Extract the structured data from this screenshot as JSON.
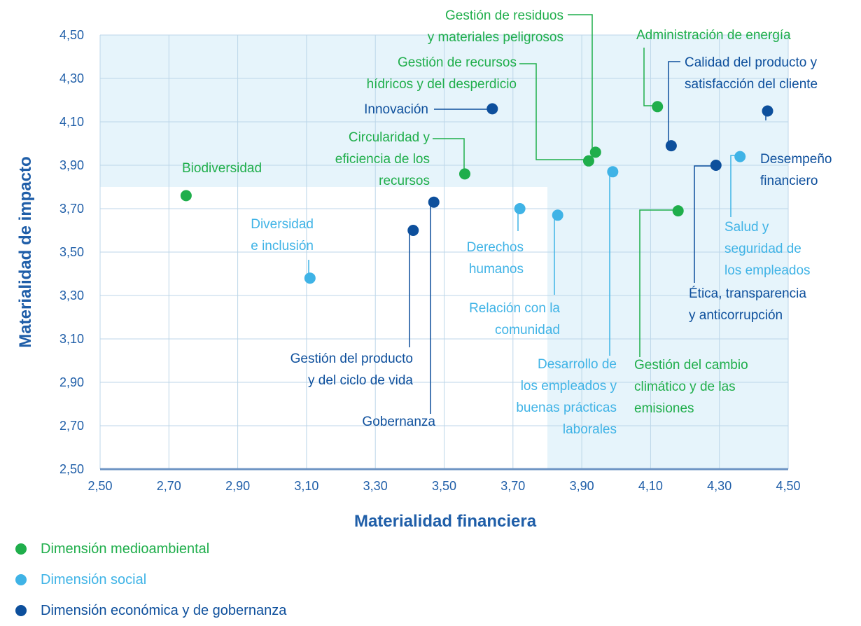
{
  "colors": {
    "environmental": "#1fae4b",
    "social": "#3fb3e6",
    "governance": "#0d4f9c",
    "axis_text": "#1f5ea8",
    "band": "#e6f4fb",
    "grid": "#bcd6e8",
    "baseline": "#6f95c4"
  },
  "chart_data": {
    "type": "scatter",
    "xlabel": "Materialidad financiera",
    "ylabel": "Materialidad de impacto",
    "xlim": [
      2.5,
      4.5
    ],
    "ylim": [
      2.5,
      4.5
    ],
    "x_ticks": [
      "2,50",
      "2,70",
      "2,90",
      "3,10",
      "3,30",
      "3,50",
      "3,70",
      "3,90",
      "4,10",
      "4,30",
      "4,50"
    ],
    "y_ticks": [
      "2,50",
      "2,70",
      "2,90",
      "3,10",
      "3,30",
      "3,50",
      "3,70",
      "3,90",
      "4,10",
      "4,30",
      "4,50"
    ],
    "grid": true,
    "highlight_threshold": 3.8,
    "legend_position": "bottom-left",
    "series": [
      {
        "name": "Dimensión medioambiental",
        "key": "environmental",
        "points": [
          {
            "x": 2.75,
            "y": 3.76,
            "label": [
              "Biodiversidad"
            ]
          },
          {
            "x": 3.56,
            "y": 3.86,
            "label": [
              "Circularidad y",
              "eficiencia de los",
              "recursos"
            ]
          },
          {
            "x": 3.92,
            "y": 3.92,
            "label": [
              "Gestión de recursos",
              "hídricos y del desperdicio"
            ]
          },
          {
            "x": 3.94,
            "y": 3.96,
            "label": [
              "Gestión de residuos",
              "y materiales peligrosos"
            ]
          },
          {
            "x": 4.12,
            "y": 4.17,
            "label": [
              "Administración de energía"
            ]
          },
          {
            "x": 4.18,
            "y": 3.69,
            "label": [
              "Gestión del cambio",
              "climático y de las",
              "emisiones"
            ]
          }
        ]
      },
      {
        "name": "Dimensión social",
        "key": "social",
        "points": [
          {
            "x": 3.11,
            "y": 3.38,
            "label": [
              "Diversidad",
              "e inclusión"
            ]
          },
          {
            "x": 3.72,
            "y": 3.7,
            "label": [
              "Derechos",
              "humanos"
            ]
          },
          {
            "x": 3.83,
            "y": 3.67,
            "label": [
              "Relación con la",
              "comunidad"
            ]
          },
          {
            "x": 3.99,
            "y": 3.87,
            "label": [
              "Desarrollo de",
              "los empleados y",
              "buenas prácticas",
              "laborales"
            ]
          },
          {
            "x": 4.36,
            "y": 3.94,
            "label": [
              "Salud y",
              "seguridad de",
              "los empleados"
            ]
          }
        ]
      },
      {
        "name": "Dimensión económica y de gobernanza",
        "key": "governance",
        "points": [
          {
            "x": 3.64,
            "y": 4.16,
            "label": [
              "Innovación"
            ]
          },
          {
            "x": 3.41,
            "y": 3.6,
            "label": [
              "Gestión del producto",
              "y del ciclo de vida"
            ]
          },
          {
            "x": 3.47,
            "y": 3.73,
            "label": [
              "Gobernanza"
            ]
          },
          {
            "x": 4.16,
            "y": 3.99,
            "label": [
              "Calidad del producto y",
              "satisfacción del cliente"
            ]
          },
          {
            "x": 4.29,
            "y": 3.9,
            "label": [
              "Ética, transparencia",
              "y anticorrupción"
            ]
          },
          {
            "x": 4.44,
            "y": 4.15,
            "label": [
              "Desempeño",
              "financiero"
            ]
          }
        ]
      }
    ]
  }
}
